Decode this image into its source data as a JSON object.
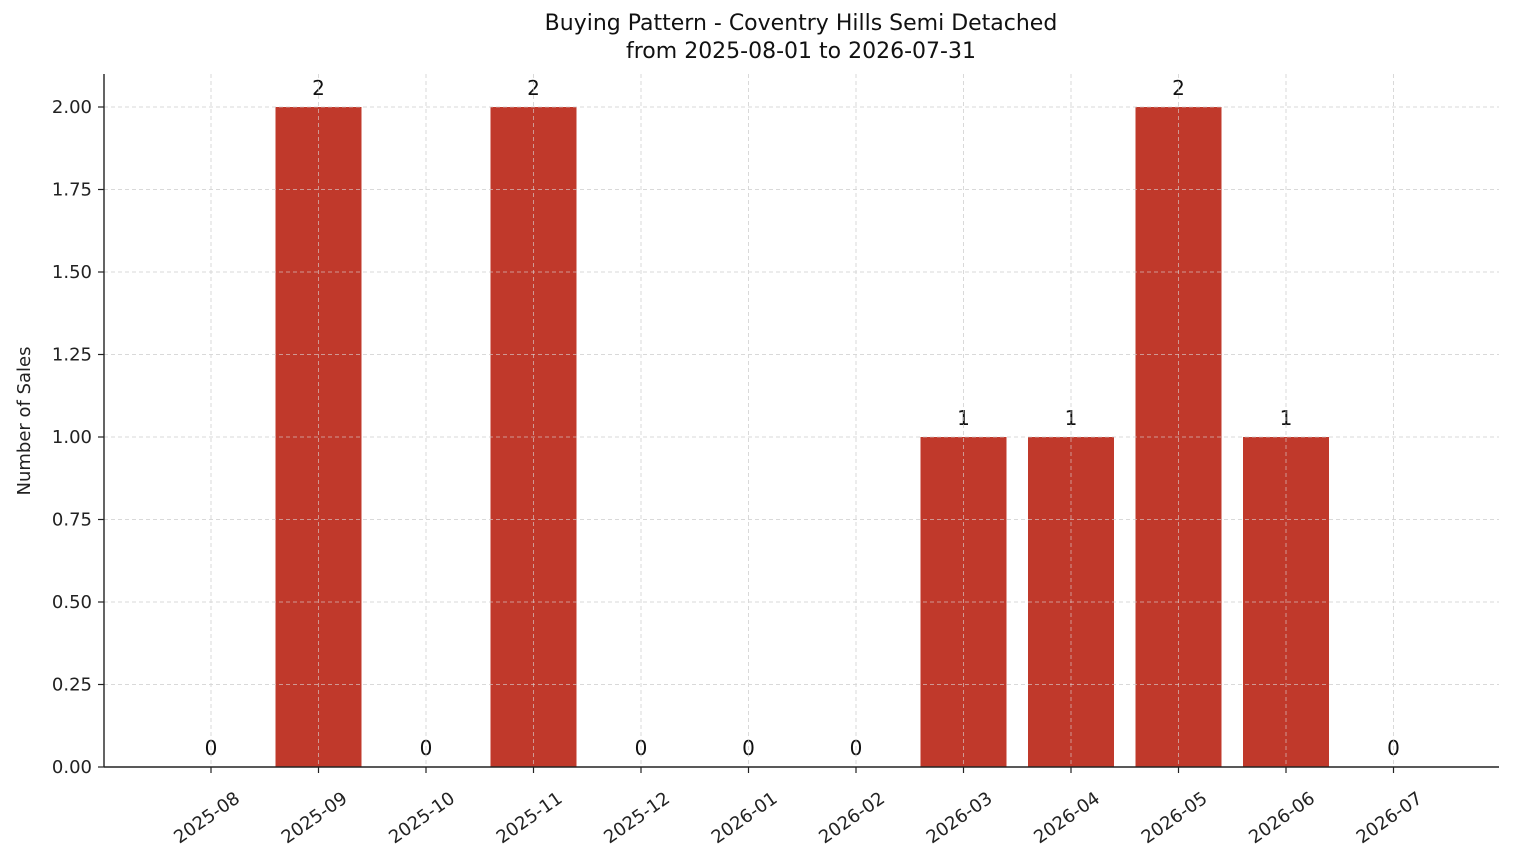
{
  "chart_data": {
    "type": "bar",
    "title": "Buying Pattern - Coventry Hills Semi Detached",
    "subtitle": "from 2025-08-01 to 2026-07-31",
    "xlabel": "",
    "ylabel": "Number of Sales",
    "categories": [
      "2025-08",
      "2025-09",
      "2025-10",
      "2025-11",
      "2025-12",
      "2026-01",
      "2026-02",
      "2026-03",
      "2026-04",
      "2026-05",
      "2026-06",
      "2026-07"
    ],
    "values": [
      0,
      2,
      0,
      2,
      0,
      0,
      0,
      1,
      1,
      2,
      1,
      0
    ],
    "data_labels": [
      "0",
      "2",
      "0",
      "2",
      "0",
      "0",
      "0",
      "1",
      "1",
      "2",
      "1",
      "0"
    ],
    "ylim": [
      0,
      2.1
    ],
    "yticks": [
      0,
      0.25,
      0.5,
      0.75,
      1.0,
      1.25,
      1.5,
      1.75,
      2.0
    ],
    "ytick_labels": [
      "0.00",
      "0.25",
      "0.50",
      "0.75",
      "1.00",
      "1.25",
      "1.50",
      "1.75",
      "2.00"
    ],
    "grid": true,
    "bar_color": "#c0392b",
    "grid_color": "#d9d9d9"
  }
}
